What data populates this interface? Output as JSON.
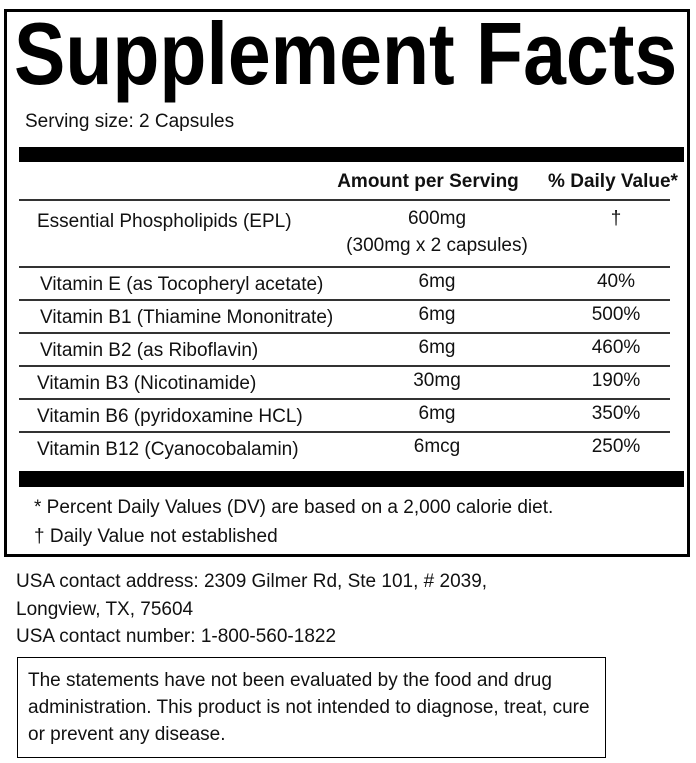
{
  "header": {
    "title": "Supplement Facts",
    "serving_size": "Serving size: 2 Capsules"
  },
  "table": {
    "columns": [
      "Amount per Serving",
      "% Daily Value*"
    ],
    "rows": [
      {
        "name": "Essential Phospholipids (EPL)",
        "amount": "600mg",
        "amount_note": "(300mg x 2 capsules)",
        "dv": "†"
      },
      {
        "name": "Vitamin E (as Tocopheryl acetate)",
        "amount": "6mg",
        "dv": "40%"
      },
      {
        "name": "Vitamin B1 (Thiamine Mononitrate)",
        "amount": "6mg",
        "dv": "500%"
      },
      {
        "name": "Vitamin B2 (as Riboflavin)",
        "amount": "6mg",
        "dv": "460%"
      },
      {
        "name": "Vitamin B3 (Nicotinamide)",
        "amount": "30mg",
        "dv": "190%"
      },
      {
        "name": "Vitamin B6 (pyridoxamine HCL)",
        "amount": "6mg",
        "dv": "350%"
      },
      {
        "name": "Vitamin B12 (Cyanocobalamin)",
        "amount": "6mcg",
        "dv": "250%"
      }
    ]
  },
  "footnotes": [
    "* Percent Daily Values (DV) are based on a 2,000 calorie diet.",
    "† Daily Value not established"
  ],
  "contact": [
    "USA contact address: 2309 Gilmer Rd, Ste 101, # 2039,",
    "Longview, TX, 75604",
    "USA contact number: 1-800-560-1822"
  ],
  "disclaimer": "The statements have not been evaluated by the food and drug administration. This product is not intended to diagnose, treat, cure or prevent any disease."
}
